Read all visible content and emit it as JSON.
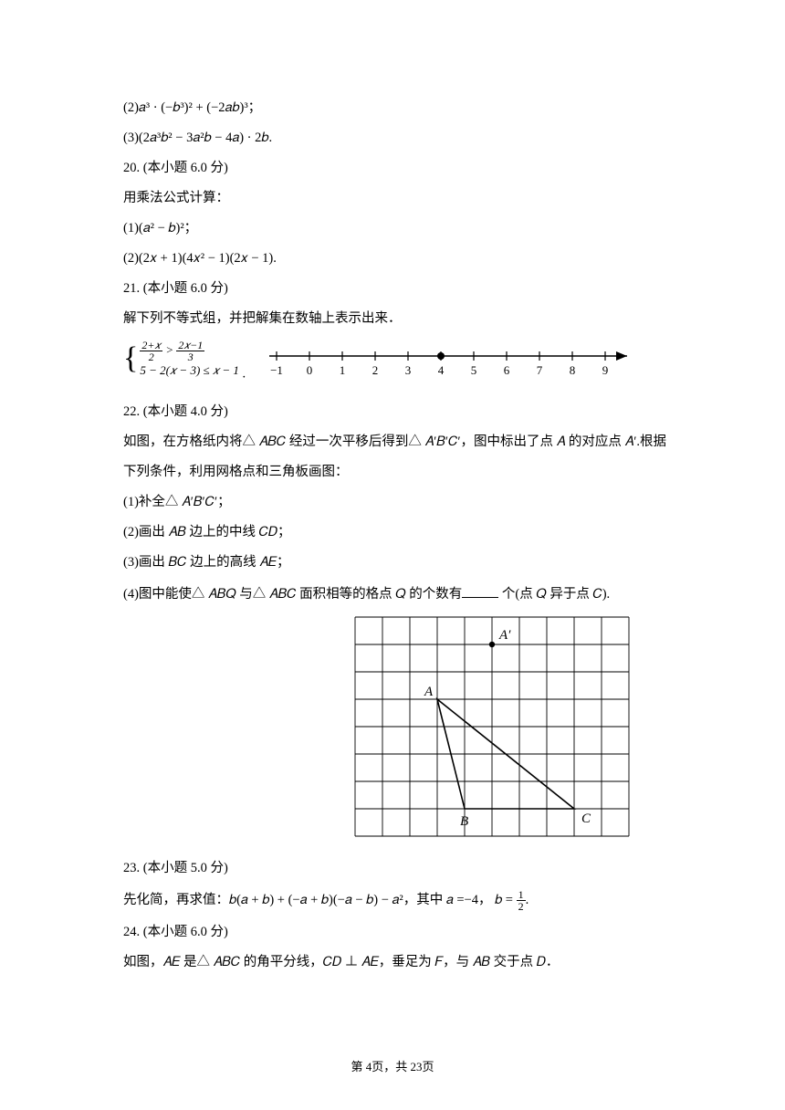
{
  "q19": {
    "sub2": "(2)𝑎³ · (−𝑏³)² + (−2𝑎𝑏)³；",
    "sub3": "(3)(2𝑎³𝑏² − 3𝑎²𝑏 − 4𝑎) · 2𝑏."
  },
  "q20": {
    "head": "20.    (本小题 6.0 分)",
    "intro": "用乘法公式计算：",
    "sub1": "(1)(𝑎² − 𝑏)²；",
    "sub2": "(2)(2𝑥 + 1)(4𝑥² − 1)(2𝑥 − 1)."
  },
  "q21": {
    "head": "21.    (本小题 6.0 分)",
    "intro": "解下列不等式组，并把解集在数轴上表示出来．",
    "sys": {
      "l1_num": "2+𝑥",
      "l1_den": "2",
      "l1_mid": " > ",
      "l1_num2": "2𝑥−1",
      "l1_den2": "3",
      "l2": "5 − 2(𝑥 − 3) ≤ 𝑥 − 1",
      "tail": "."
    },
    "numberline": {
      "ticks": [
        "−1",
        "0",
        "1",
        "2",
        "3",
        "4",
        "5",
        "6",
        "7",
        "8",
        "9"
      ],
      "dot_at_index": 5,
      "axis_color": "#000000",
      "tick_fontsize": 13
    }
  },
  "q22": {
    "head": "22.    (本小题 4.0 分)",
    "intro_l1": "如图，在方格纸内将△ 𝐴𝐵𝐶 经过一次平移后得到△ 𝐴′𝐵′𝐶′，图中标出了点 𝐴 的对应点 𝐴′.根据",
    "intro_l2": "下列条件，利用网格点和三角板画图：",
    "sub1": "(1)补全△ 𝐴′𝐵′𝐶′；",
    "sub2": "(2)画出 𝐴𝐵 边上的中线 𝐶𝐷；",
    "sub3": "(3)画出 𝐵𝐶 边上的高线 𝐴𝐸；",
    "sub4_a": "(4)图中能使△ 𝐴𝐵𝑄 与△ 𝐴𝐵𝐶 面积相等的格点 𝑄 的个数有",
    "sub4_b": " 个(点 𝑄 异于点 𝐶).",
    "grid": {
      "cols": 10,
      "rows": 8,
      "cell": 30,
      "stroke": "#000000",
      "stroke_width": 0.9,
      "label_fontsize": 15,
      "points": {
        "Aprime": {
          "col": 5,
          "row": 1,
          "label": "A′",
          "label_dx": 8,
          "label_dy": -6
        },
        "A": {
          "col": 3,
          "row": 3,
          "label": "A",
          "label_dx": -14,
          "label_dy": -4
        },
        "B": {
          "col": 4,
          "row": 7,
          "label": "B",
          "label_dx": -5,
          "label_dy": 18
        },
        "C": {
          "col": 8,
          "row": 7,
          "label": "C",
          "label_dx": 8,
          "label_dy": 15
        }
      },
      "triangle": [
        "A",
        "B",
        "C"
      ]
    }
  },
  "q23": {
    "head": "23.    (本小题 5.0 分)",
    "text_a": "先化简，再求值：𝑏(𝑎 + 𝑏) + (−𝑎 + 𝑏)(−𝑎 − 𝑏) − 𝑎²，其中 𝑎 =−4， 𝑏 = ",
    "frac_num": "1",
    "frac_den": "2",
    "text_b": "."
  },
  "q24": {
    "head": "24.    (本小题 6.0 分)",
    "text": "如图，𝐴𝐸 是△ 𝐴𝐵𝐶 的角平分线，𝐶𝐷 ⊥ 𝐴𝐸，垂足为 𝐹，与 𝐴𝐵 交于点 𝐷．"
  },
  "footer": {
    "a": "第 ",
    "page": "4",
    "mid": "页，共 ",
    "total": "23",
    "b": "页"
  }
}
